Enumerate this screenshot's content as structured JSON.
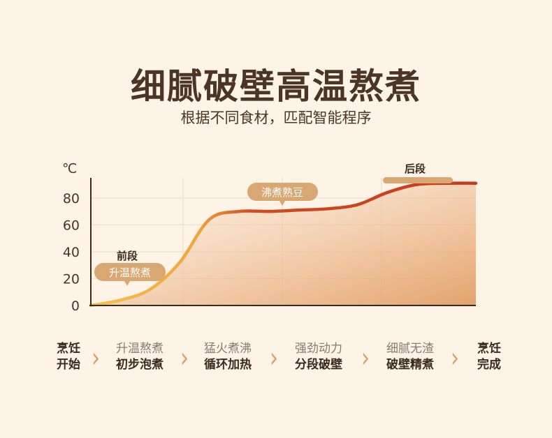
{
  "header": {
    "title": "细腻破壁高温熬煮",
    "subtitle": "根据不同食材，匹配智能程序"
  },
  "chart_data": {
    "type": "area",
    "title": "",
    "xlabel": "",
    "ylabel": "℃",
    "ylim": [
      0,
      95
    ],
    "yticks": [
      0,
      20,
      40,
      60,
      80
    ],
    "grid": true,
    "x": [
      0,
      1,
      2,
      3,
      4,
      5,
      6,
      7,
      8,
      9,
      10,
      11,
      12,
      13
    ],
    "series": [
      {
        "name": "",
        "values": [
          0,
          4,
          12,
          32,
          64,
          70,
          70,
          71,
          72,
          75,
          84,
          90,
          91,
          91
        ]
      }
    ],
    "annotations": [
      {
        "heading": "前段",
        "tag": "升温熬煮"
      },
      {
        "heading": "",
        "tag": "沸煮熟豆"
      },
      {
        "heading": "后段",
        "tag": ""
      }
    ],
    "colors": {
      "curve_start": "#f3b84a",
      "curve_end": "#c83a1c",
      "fill": "#e7a36b",
      "tag": "#d9a772"
    }
  },
  "steps": [
    {
      "top": "烹饪",
      "bottom": "开始",
      "end": true
    },
    {
      "top": "升温熬煮",
      "bottom": "初步泡煮"
    },
    {
      "top": "猛火煮沸",
      "bottom": "循环加热"
    },
    {
      "top": "强劲动力",
      "bottom": "分段破壁"
    },
    {
      "top": "细腻无渣",
      "bottom": "破壁精煮"
    },
    {
      "top": "烹饪",
      "bottom": "完成",
      "end": true
    }
  ],
  "icons": {
    "arrow": "chevron-right-icon"
  }
}
